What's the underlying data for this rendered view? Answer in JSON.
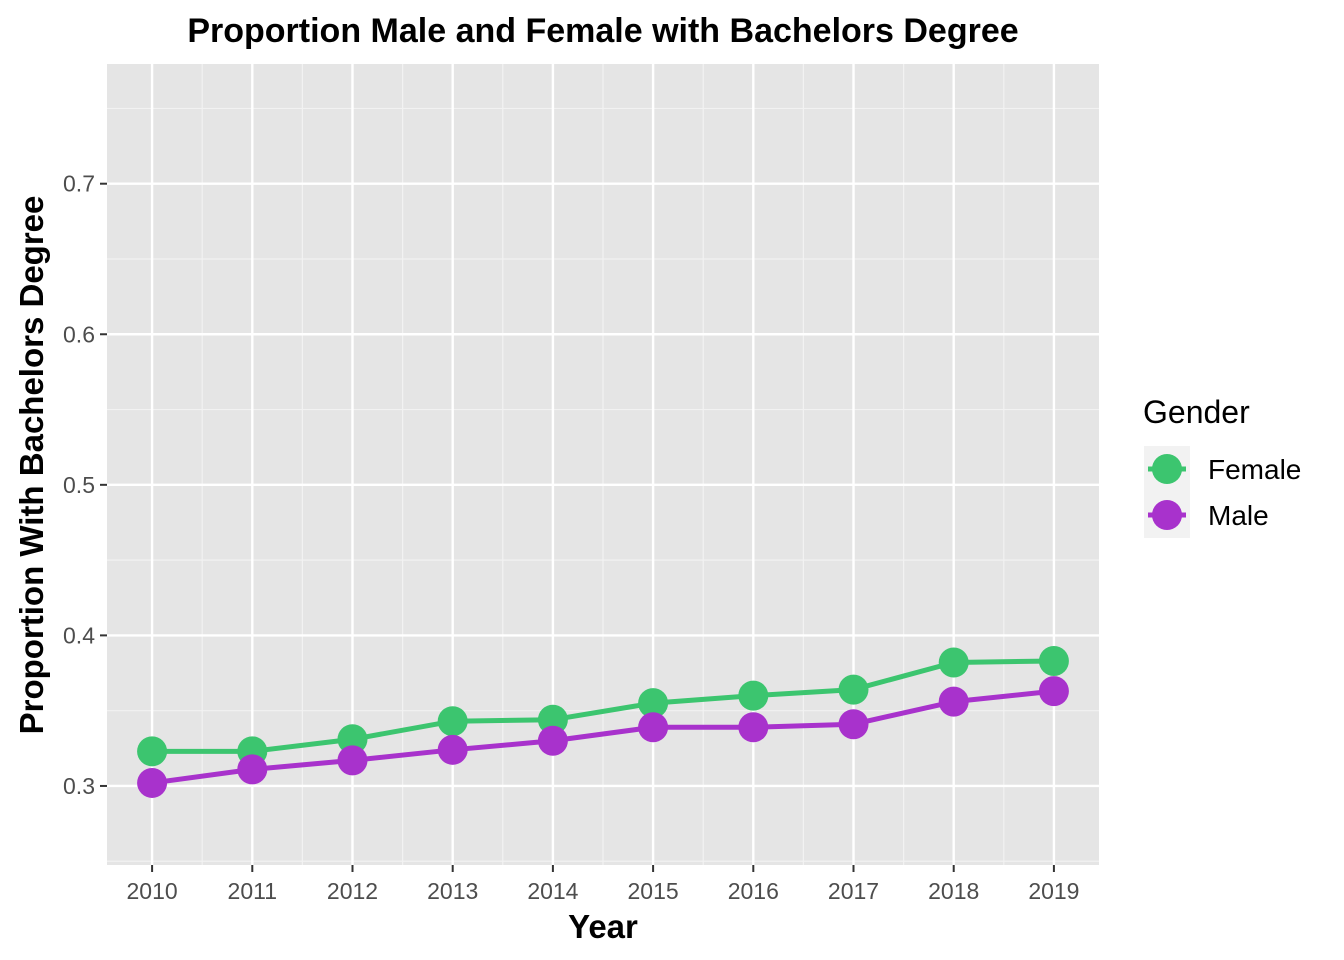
{
  "chart_data": {
    "type": "line",
    "title": "Proportion Male and Female with Bachelors Degree",
    "xlabel": "Year",
    "ylabel": "Proportion With Bachelors Degree",
    "x": [
      "2010",
      "2011",
      "2012",
      "2013",
      "2014",
      "2015",
      "2016",
      "2017",
      "2018",
      "2019"
    ],
    "xlim": [
      2009.55,
      2019.45
    ],
    "ylim": [
      0.2475,
      0.7795
    ],
    "yticks": [
      0.3,
      0.4,
      0.5,
      0.6,
      0.7
    ],
    "ytick_labels": [
      "0.3",
      "0.4",
      "0.5",
      "0.6",
      "0.7"
    ],
    "grid": true,
    "legend_title": "Gender",
    "legend_position": "right",
    "series": [
      {
        "name": "Female",
        "color": "#3cc56f",
        "values": [
          0.323,
          0.323,
          0.331,
          0.343,
          0.344,
          0.355,
          0.36,
          0.364,
          0.382,
          0.383
        ]
      },
      {
        "name": "Male",
        "color": "#a832cc",
        "values": [
          0.302,
          0.311,
          0.317,
          0.324,
          0.33,
          0.339,
          0.339,
          0.341,
          0.356,
          0.363
        ]
      }
    ]
  }
}
